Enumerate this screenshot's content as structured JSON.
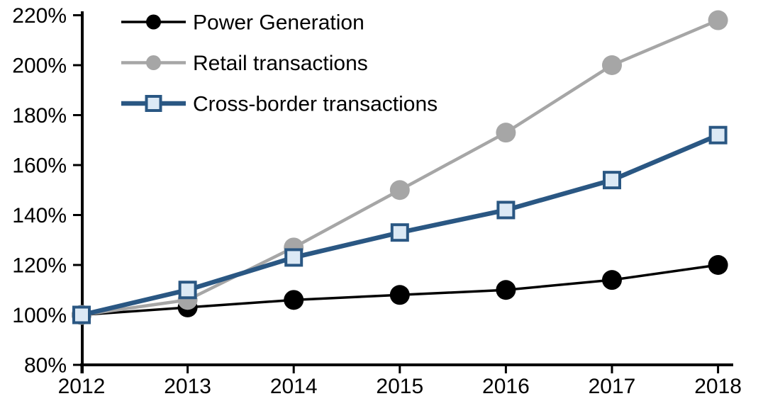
{
  "figure": {
    "background": "#FFFFFF",
    "text_color": "#000000",
    "axis_color": "#000000"
  },
  "chart_data": {
    "type": "line",
    "title": "",
    "xlabel": "",
    "ylabel": "",
    "grid": false,
    "legend_position": "top-left",
    "x": [
      2012,
      2013,
      2014,
      2015,
      2016,
      2017,
      2018
    ],
    "x_tick_labels": [
      "2012",
      "2013",
      "2014",
      "2015",
      "2016",
      "2017",
      "2018"
    ],
    "ylim": [
      80,
      220
    ],
    "ytick_step": 20,
    "y_ticks": [
      {
        "value": 80,
        "label": "80%"
      },
      {
        "value": 100,
        "label": "100%"
      },
      {
        "value": 120,
        "label": "120%"
      },
      {
        "value": 140,
        "label": "140%"
      },
      {
        "value": 160,
        "label": "160%"
      },
      {
        "value": 180,
        "label": "180%"
      },
      {
        "value": 200,
        "label": "200%"
      },
      {
        "value": 220,
        "label": "220%"
      }
    ],
    "series": [
      {
        "name": "Power Generation",
        "color": "#000000",
        "marker": "circle",
        "marker_fill": "#000000",
        "line_width": 3.5,
        "values": [
          100,
          103,
          106,
          108,
          110,
          114,
          120
        ]
      },
      {
        "name": "Retail transactions",
        "color": "#A6A6A6",
        "marker": "circle",
        "marker_fill": "#A6A6A6",
        "line_width": 4.5,
        "values": [
          100,
          106,
          127,
          150,
          173,
          200,
          218
        ]
      },
      {
        "name": "Cross-border transactions",
        "color": "#2A5783",
        "marker": "square",
        "marker_fill": "#DCE9F5",
        "line_width": 6.5,
        "values": [
          100,
          110,
          123,
          133,
          142,
          154,
          172
        ]
      }
    ]
  }
}
